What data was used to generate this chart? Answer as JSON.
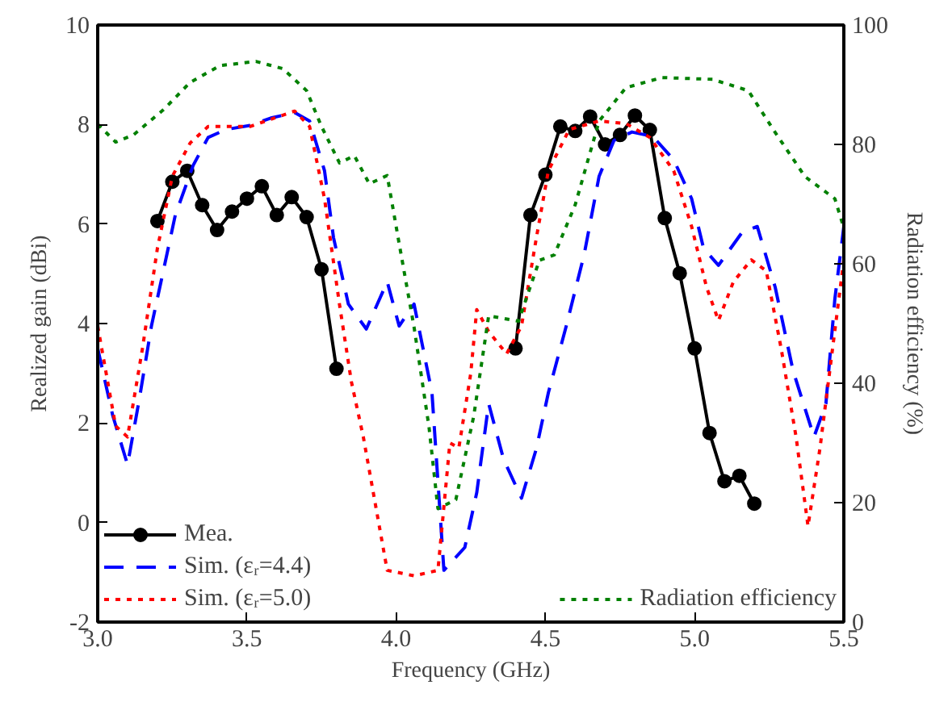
{
  "chart_data": {
    "type": "line",
    "xlabel": "Frequency (GHz)",
    "ylabel": "Realized gain (dBi)",
    "y2label": "Radiation efficiency (%)",
    "xlim": [
      3.0,
      5.5
    ],
    "xticks": [
      {
        "value": 3,
        "label": "3.0"
      },
      3.5,
      {
        "value": 4,
        "label": "4.0"
      },
      4.5,
      {
        "value": 5,
        "label": "5.0"
      },
      5.5
    ],
    "ylim": [
      -2,
      10
    ],
    "yticks": [
      -2,
      0,
      2,
      4,
      6,
      8,
      10
    ],
    "y2lim": [
      0,
      100
    ],
    "y2ticks": [
      0,
      20,
      40,
      60,
      80,
      100
    ],
    "grid": false,
    "legend": "bottom",
    "series": [
      {
        "name": "Mea.",
        "color": "#000000",
        "marker": "circle",
        "line_style": "solid",
        "x": [
          3.2,
          3.25,
          3.3,
          3.35,
          3.4,
          3.45,
          3.5,
          3.55,
          3.6,
          3.65,
          3.7,
          3.75,
          3.8,
          4.1,
          4.4,
          4.45,
          4.5,
          4.55,
          4.6,
          4.65,
          4.7,
          4.75,
          4.8,
          4.85,
          4.9,
          4.95,
          5.0,
          5.05,
          5.1,
          5.15,
          5.2
        ],
        "values": [
          6.06,
          6.85,
          7.07,
          6.38,
          5.88,
          6.25,
          6.51,
          6.76,
          6.18,
          6.54,
          6.14,
          5.09,
          3.09,
          null,
          3.5,
          6.18,
          6.99,
          7.96,
          7.87,
          8.16,
          7.6,
          7.79,
          8.18,
          7.89,
          6.12,
          5.01,
          3.5,
          1.8,
          0.83,
          0.94,
          0.38
        ]
      },
      {
        "name": "Sim. (εᵣ=4.4)",
        "color": "#0000ff",
        "marker": "none",
        "line_style": "dashed",
        "x": [
          3.0,
          3.05,
          3.1,
          3.14,
          3.18,
          3.22,
          3.26,
          3.32,
          3.37,
          3.43,
          3.51,
          3.58,
          3.66,
          3.71,
          3.76,
          3.79,
          3.84,
          3.9,
          3.97,
          4.01,
          4.06,
          4.12,
          4.16,
          4.23,
          4.27,
          4.31,
          4.36,
          4.42,
          4.47,
          4.51,
          4.57,
          4.63,
          4.68,
          4.73,
          4.79,
          4.86,
          4.93,
          4.99,
          5.03,
          5.08,
          5.16,
          5.21,
          5.27,
          5.33,
          5.4,
          5.44,
          5.47,
          5.5
        ],
        "values": [
          3.5,
          2.16,
          1.16,
          2.5,
          3.95,
          5.06,
          6.18,
          7.18,
          7.74,
          7.9,
          7.98,
          8.13,
          8.24,
          8.07,
          7.07,
          5.73,
          4.39,
          3.89,
          4.84,
          3.95,
          4.39,
          2.61,
          -0.96,
          -0.5,
          0.6,
          2.39,
          1.27,
          0.49,
          1.49,
          2.61,
          3.95,
          5.39,
          6.96,
          7.68,
          7.85,
          7.76,
          7.29,
          6.51,
          5.51,
          5.17,
          5.84,
          5.95,
          4.73,
          3.05,
          1.72,
          2.39,
          4.5,
          5.95
        ]
      },
      {
        "name": "Sim. (εᵣ=5.0)",
        "color": "#ff0000",
        "marker": "none",
        "line_style": "dotted",
        "x": [
          3.0,
          3.06,
          3.1,
          3.15,
          3.2,
          3.25,
          3.31,
          3.37,
          3.51,
          3.66,
          3.71,
          3.76,
          3.81,
          3.85,
          3.89,
          3.93,
          3.97,
          4.06,
          4.14,
          4.18,
          4.21,
          4.25,
          4.27,
          4.31,
          4.37,
          4.42,
          4.47,
          4.51,
          4.58,
          4.68,
          4.77,
          4.85,
          4.93,
          4.99,
          5.04,
          5.08,
          5.13,
          5.19,
          5.24,
          5.29,
          5.34,
          5.38,
          5.42,
          5.46,
          5.5
        ],
        "values": [
          3.95,
          1.94,
          1.72,
          3.5,
          5.51,
          6.96,
          7.63,
          7.96,
          7.96,
          8.27,
          7.96,
          6.51,
          4.39,
          2.83,
          1.72,
          0.38,
          -0.96,
          -1.07,
          -0.96,
          1.6,
          1.5,
          3.0,
          4.28,
          3.84,
          3.39,
          3.95,
          5.73,
          7.07,
          7.9,
          8.07,
          8.02,
          7.74,
          7.07,
          5.95,
          4.73,
          4.06,
          4.84,
          5.28,
          5.06,
          3.5,
          1.72,
          -0.07,
          1.49,
          3.39,
          5.28
        ]
      },
      {
        "name": "Radiation efficiency",
        "color": "#008000",
        "marker": "none",
        "line_style": "dotted",
        "axis": "y2",
        "x": [
          3.0,
          3.06,
          3.12,
          3.22,
          3.31,
          3.41,
          3.53,
          3.62,
          3.7,
          3.75,
          3.81,
          3.86,
          3.91,
          3.97,
          4.01,
          4.06,
          4.11,
          4.14,
          4.2,
          4.26,
          4.31,
          4.41,
          4.48,
          4.53,
          4.6,
          4.68,
          4.77,
          4.89,
          5.06,
          5.18,
          5.27,
          5.37,
          5.47,
          5.5
        ],
        "values": [
          83.4,
          80.4,
          81.6,
          85.8,
          90.4,
          93.2,
          93.9,
          92.7,
          89.0,
          83.0,
          76.9,
          78.1,
          73.4,
          74.8,
          63.4,
          49.4,
          32.7,
          19.0,
          20.5,
          34.5,
          51.3,
          50.4,
          60.6,
          61.5,
          69.9,
          83.9,
          89.5,
          91.2,
          90.9,
          89.0,
          82.0,
          74.6,
          70.9,
          66.0
        ]
      }
    ]
  }
}
